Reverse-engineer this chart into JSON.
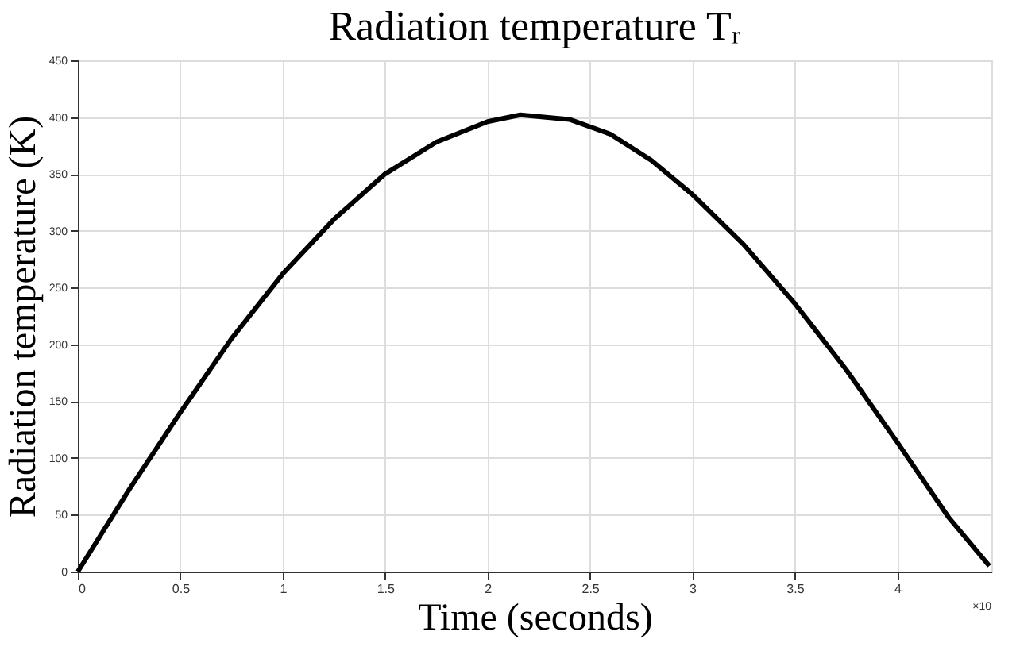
{
  "chart_data": {
    "type": "line",
    "title": "Radiation temperature Tᵣ",
    "xlabel": "Time (seconds)",
    "ylabel": "Radiation temperature (K)",
    "x": [
      0,
      0.25,
      0.5,
      0.75,
      1,
      1.25,
      1.5,
      1.75,
      2,
      2.16,
      2.4,
      2.6,
      2.8,
      3,
      3.25,
      3.5,
      3.75,
      4,
      4.25,
      4.45
    ],
    "series": [
      {
        "color": "#000000",
        "values": [
          0,
          72,
          140,
          205,
          262,
          310,
          350,
          378,
          396,
          402,
          398,
          385,
          362,
          332,
          288,
          236,
          178,
          114,
          48,
          5
        ]
      }
    ],
    "xlim": [
      0,
      4.46
    ],
    "xticks": [
      0,
      0.5,
      1,
      1.5,
      2,
      2.5,
      3,
      3.5,
      4
    ],
    "ylim": [
      0,
      450
    ],
    "yticks": [
      0,
      50,
      100,
      150,
      200,
      250,
      300,
      350,
      400,
      450
    ],
    "annotations": [
      "×10"
    ],
    "grid": true,
    "line_style": "solid",
    "marker": "none"
  }
}
